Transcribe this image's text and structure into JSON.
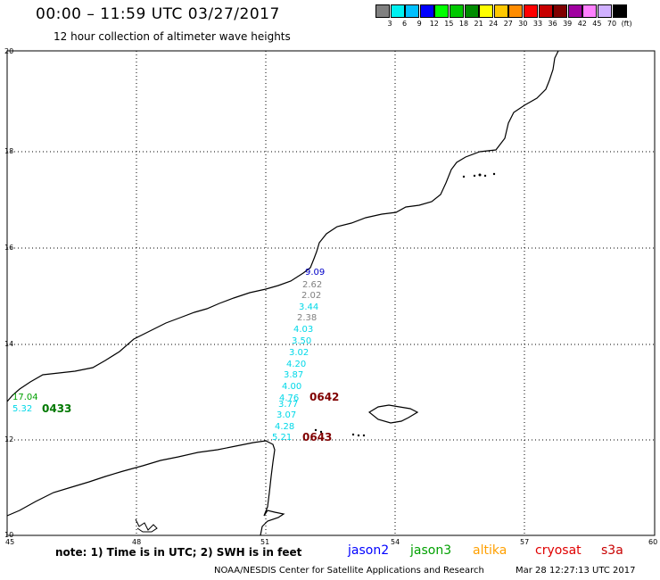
{
  "header": {
    "title": "00:00 – 11:59 UTC 03/27/2017",
    "subtitle": "12 hour collection of altimeter wave heights"
  },
  "legend": {
    "colors": [
      "#808080",
      "#00f0f0",
      "#00c0ff",
      "#0000ff",
      "#00ff00",
      "#00c800",
      "#008c00",
      "#ffff00",
      "#ffc800",
      "#ff8c00",
      "#ff0000",
      "#c80000",
      "#800000",
      "#a000a0",
      "#ff80ff",
      "#d0b0ff",
      "#000000"
    ],
    "labels": [
      "3",
      "6",
      "9",
      "12",
      "15",
      "18",
      "21",
      "24",
      "27",
      "30",
      "33",
      "36",
      "39",
      "42",
      "45",
      "70",
      "(ft)"
    ]
  },
  "axes": {
    "x_ticks": [
      "45",
      "48",
      "51",
      "54",
      "57",
      "60"
    ],
    "y_ticks": [
      "20",
      "18",
      "16",
      "14",
      "12",
      "10"
    ]
  },
  "observations": [
    {
      "value": "9.09",
      "color": "#0000c8"
    },
    {
      "value": "2.62",
      "color": "#808080"
    },
    {
      "value": "2.02",
      "color": "#808080"
    },
    {
      "value": "3.44",
      "color": "#00d8e8"
    },
    {
      "value": "2.38",
      "color": "#808080"
    },
    {
      "value": "4.03",
      "color": "#00d8e8"
    },
    {
      "value": "3.50",
      "color": "#00d8e8"
    },
    {
      "value": "3.02",
      "color": "#00d8e8"
    },
    {
      "value": "4.20",
      "color": "#00d8e8"
    },
    {
      "value": "3.87",
      "color": "#00d8e8"
    },
    {
      "value": "4.00",
      "color": "#00d8e8"
    },
    {
      "value": "4.76",
      "color": "#00d8e8"
    },
    {
      "value": "3.77",
      "color": "#00d8e8"
    },
    {
      "value": "3.07",
      "color": "#00d8e8"
    },
    {
      "value": "4.28",
      "color": "#00d8e8"
    },
    {
      "value": "5.21",
      "color": "#00d8e8"
    },
    {
      "value": "17.04",
      "color": "#00a000"
    },
    {
      "value": "5.32",
      "color": "#00d8e8"
    }
  ],
  "pass_times": [
    {
      "value": "0433",
      "color": "#007800"
    },
    {
      "value": "0642",
      "color": "#800000"
    },
    {
      "value": "0643",
      "color": "#800000"
    }
  ],
  "footer": {
    "note": "note:  1) Time is in UTC;  2) SWH is in feet",
    "satellites": [
      {
        "name": "jason2",
        "color": "#0000ff"
      },
      {
        "name": "jason3",
        "color": "#00a000"
      },
      {
        "name": "altika",
        "color": "#ffa000"
      },
      {
        "name": "cryosat",
        "color": "#e00000"
      },
      {
        "name": "s3a",
        "color": "#c80000"
      }
    ],
    "credit": "NOAA/NESDIS Center for Satellite Applications and Research",
    "timestamp": "Mar 28 12:27:13 UTC 2017"
  }
}
